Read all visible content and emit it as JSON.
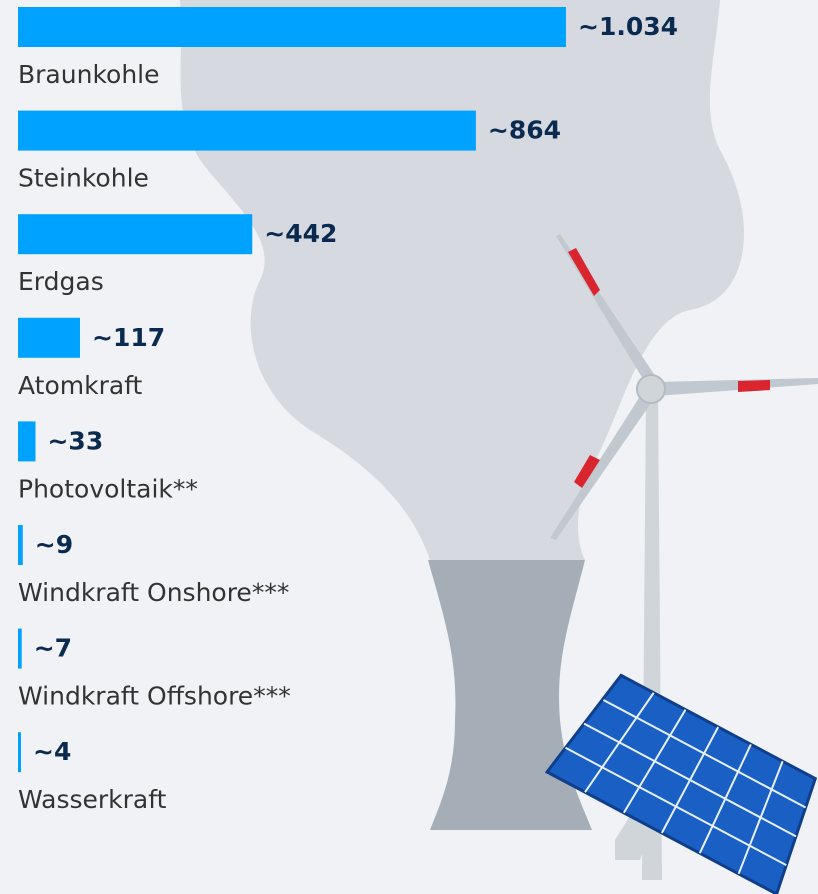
{
  "chart_data": {
    "type": "bar",
    "orientation": "horizontal",
    "color": "#00a2ff",
    "categories": [
      "Braunkohle",
      "Steinkohle",
      "Erdgas",
      "Atomkraft",
      "Photovoltaik**",
      "Windkraft Onshore***",
      "Windkraft Offshore***",
      "Wasserkraft"
    ],
    "values": [
      1034,
      864,
      442,
      117,
      33,
      9,
      7,
      4
    ],
    "value_labels": [
      "~1.034",
      "~864",
      "~442",
      "~117",
      "~33",
      "~9",
      "~7",
      "~4"
    ]
  }
}
